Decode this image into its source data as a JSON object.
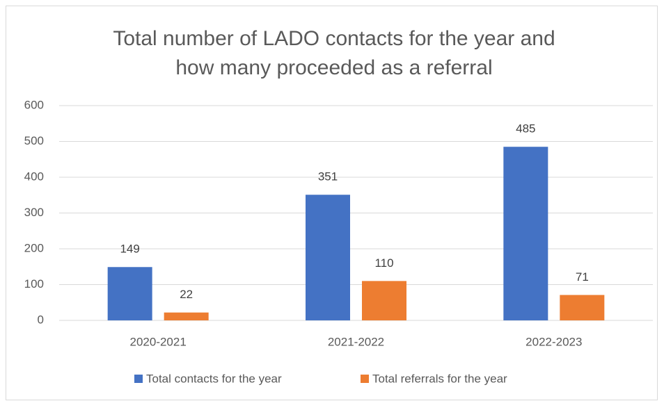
{
  "chart_data": {
    "type": "bar",
    "title": [
      "Total number of LADO contacts for the year and",
      "how many proceeded as a referral"
    ],
    "categories": [
      "2020-2021",
      "2021-2022",
      "2022-2023"
    ],
    "series": [
      {
        "name": "Total contacts for the year",
        "color": "#4472c4",
        "values": [
          149,
          351,
          485
        ]
      },
      {
        "name": "Total referrals for the year",
        "color": "#ed7d31",
        "values": [
          22,
          110,
          71
        ]
      }
    ],
    "ylim": [
      0,
      600
    ],
    "yticks": [
      0,
      100,
      200,
      300,
      400,
      500,
      600
    ],
    "grid": true,
    "legend": "bottom"
  }
}
